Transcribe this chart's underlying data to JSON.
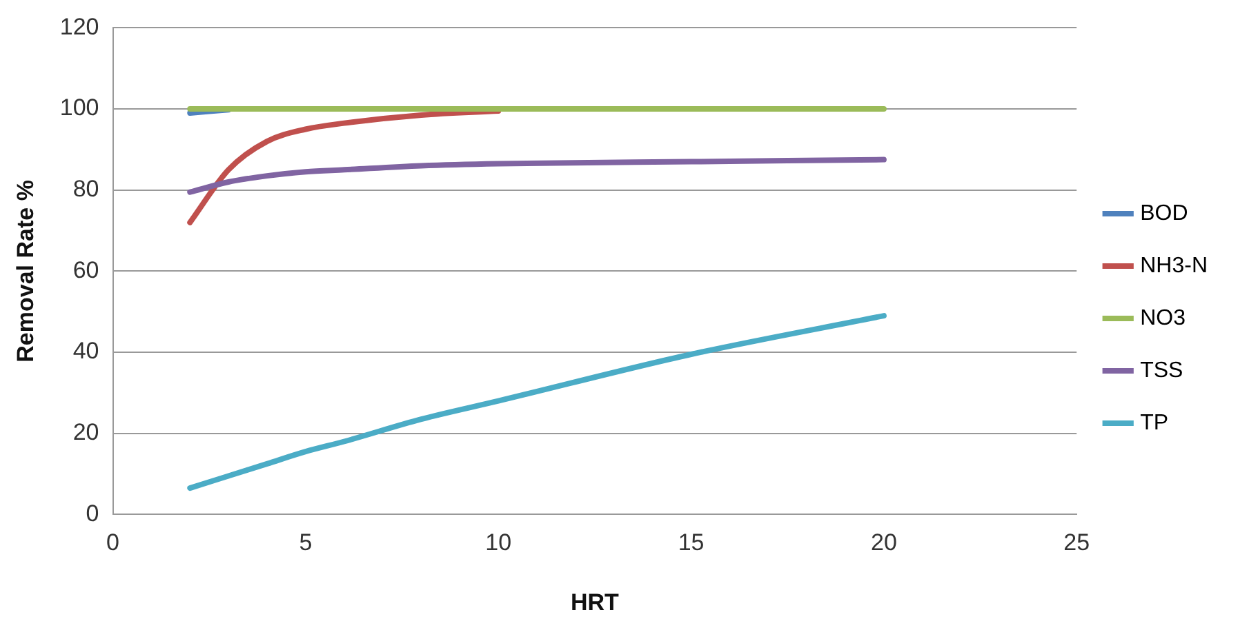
{
  "chart_data": {
    "type": "line",
    "xlabel": "HRT",
    "ylabel": "Removal Rate %",
    "x": [
      2,
      3,
      4,
      5,
      6,
      8,
      10,
      15,
      20
    ],
    "series": [
      {
        "name": "BOD",
        "color": "#4f81bd",
        "values": [
          99,
          99.8,
          null,
          null,
          null,
          null,
          null,
          null,
          null
        ]
      },
      {
        "name": "NH3-N",
        "color": "#c0504d",
        "values": [
          72,
          85,
          92,
          95,
          96.5,
          98.5,
          99.5,
          null,
          null
        ]
      },
      {
        "name": "NO3",
        "color": "#9bbb59",
        "values": [
          100,
          100,
          100,
          100,
          100,
          100,
          100,
          100,
          100
        ]
      },
      {
        "name": "TSS",
        "color": "#8064a2",
        "values": [
          79.5,
          82,
          83.5,
          84.5,
          85,
          86,
          86.5,
          87,
          87.5
        ]
      },
      {
        "name": "TP",
        "color": "#4bacc6",
        "values": [
          6.5,
          9.5,
          12.5,
          15.5,
          18,
          23.5,
          28,
          39.5,
          49
        ]
      }
    ],
    "xlim": [
      0,
      25
    ],
    "xticks": [
      0,
      5,
      10,
      15,
      20,
      25
    ],
    "ylim": [
      0,
      120
    ],
    "yticks": [
      0,
      20,
      40,
      60,
      80,
      100,
      120
    ],
    "grid": "y",
    "legend": "right",
    "marker": "none",
    "line_style": "solid"
  }
}
